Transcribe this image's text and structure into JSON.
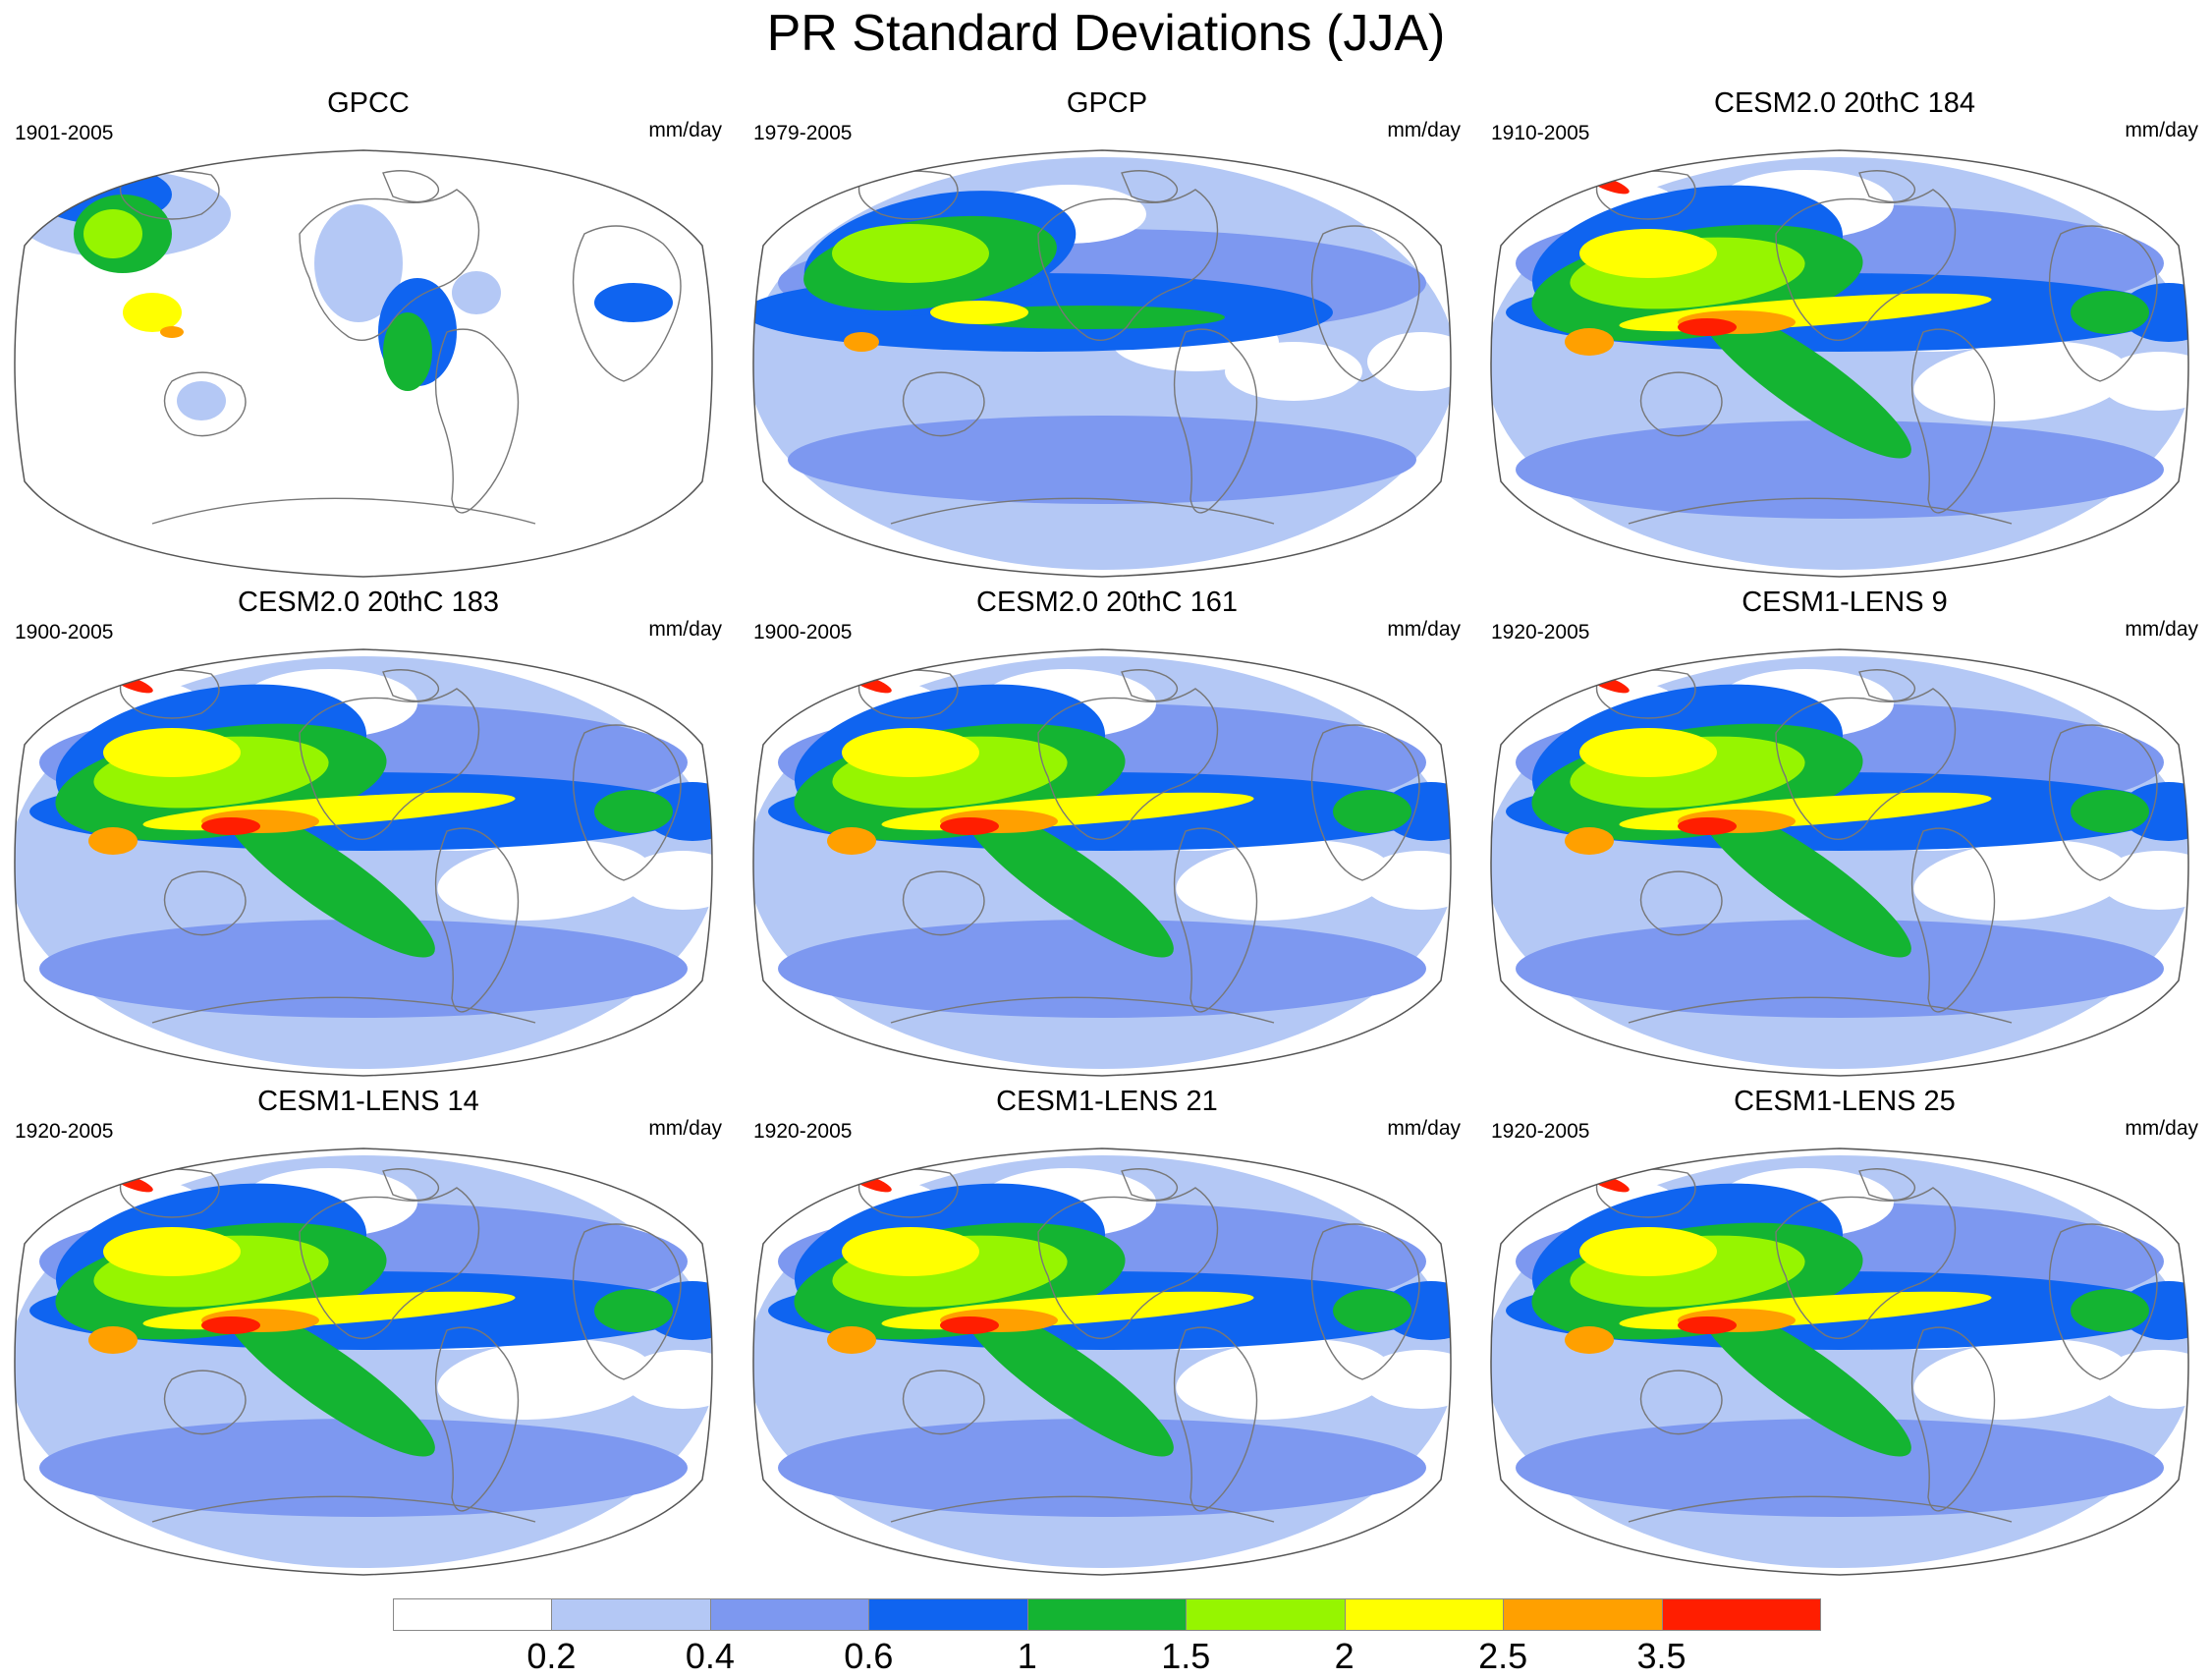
{
  "title": "PR Standard Deviations (JJA)",
  "units_label": "mm/day",
  "panels": [
    {
      "title": "GPCC",
      "years": "1901-2005",
      "pattern": "observed-land"
    },
    {
      "title": "GPCP",
      "years": "1979-2005",
      "pattern": "observed-global"
    },
    {
      "title": "CESM2.0 20thC 184",
      "years": "1910-2005",
      "pattern": "model"
    },
    {
      "title": "CESM2.0 20thC 183",
      "years": "1900-2005",
      "pattern": "model"
    },
    {
      "title": "CESM2.0 20thC 161",
      "years": "1900-2005",
      "pattern": "model"
    },
    {
      "title": "CESM1-LENS 9",
      "years": "1920-2005",
      "pattern": "model"
    },
    {
      "title": "CESM1-LENS 14",
      "years": "1920-2005",
      "pattern": "model"
    },
    {
      "title": "CESM1-LENS 21",
      "years": "1920-2005",
      "pattern": "model"
    },
    {
      "title": "CESM1-LENS 25",
      "years": "1920-2005",
      "pattern": "model"
    }
  ],
  "colorbar": {
    "colors": [
      "#ffffff",
      "#b4c8f5",
      "#7d98f0",
      "#0f64f0",
      "#14b432",
      "#96f500",
      "#ffff00",
      "#ffa000",
      "#ff1e00"
    ],
    "labels": [
      "0.2",
      "0.4",
      "0.6",
      "1",
      "1.5",
      "2",
      "2.5",
      "3.5"
    ]
  }
}
